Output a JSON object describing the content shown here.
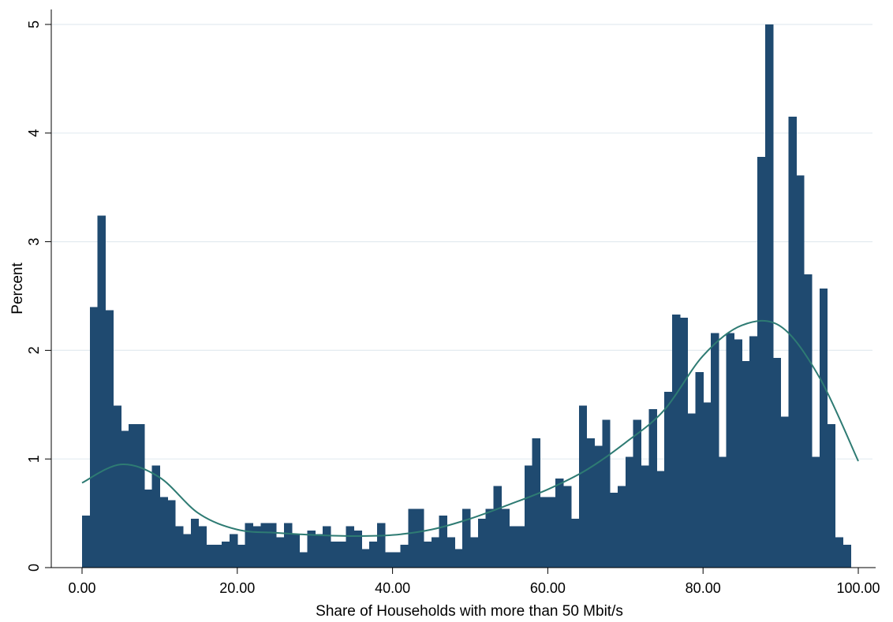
{
  "chart_data": {
    "type": "bar",
    "subtype": "histogram",
    "title": "",
    "xlabel": "Share of Households with more than 50 Mbit/s",
    "ylabel": "Percent",
    "xlim": [
      0,
      100
    ],
    "ylim": [
      0,
      5
    ],
    "bin_width": 1,
    "x_ticks": [
      0,
      20,
      40,
      60,
      80,
      100
    ],
    "x_tick_labels": [
      "0.00",
      "20.00",
      "40.00",
      "60.00",
      "80.00",
      "100.00"
    ],
    "y_ticks": [
      0,
      1,
      2,
      3,
      4,
      5
    ],
    "y_tick_labels": [
      "0",
      "1",
      "2",
      "3",
      "4",
      "5"
    ],
    "grid": "horizontal",
    "legend": "none",
    "bar_color": "#1f4a70",
    "line_color": "#2e7b73",
    "bins_start": [
      0,
      1,
      2,
      3,
      4,
      5,
      6,
      7,
      8,
      9,
      10,
      11,
      12,
      13,
      14,
      15,
      16,
      17,
      18,
      19,
      20,
      21,
      22,
      23,
      24,
      25,
      26,
      27,
      28,
      29,
      30,
      31,
      32,
      33,
      34,
      35,
      36,
      37,
      38,
      39,
      40,
      41,
      42,
      43,
      44,
      45,
      46,
      47,
      48,
      49,
      50,
      51,
      52,
      53,
      54,
      55,
      56,
      57,
      58,
      59,
      60,
      61,
      62,
      63,
      64,
      65,
      66,
      67,
      68,
      69,
      70,
      71,
      72,
      73,
      74,
      75,
      76,
      77,
      78,
      79,
      80,
      81,
      82,
      83,
      84,
      85,
      86,
      87,
      88,
      89,
      90,
      91,
      92,
      93,
      94,
      95,
      96,
      97,
      98,
      99
    ],
    "values": [
      0.48,
      2.4,
      3.24,
      2.37,
      1.49,
      1.26,
      1.32,
      1.32,
      0.72,
      0.94,
      0.65,
      0.62,
      0.38,
      0.31,
      0.45,
      0.38,
      0.21,
      0.21,
      0.24,
      0.31,
      0.21,
      0.41,
      0.38,
      0.41,
      0.41,
      0.28,
      0.41,
      0.31,
      0.14,
      0.34,
      0.31,
      0.38,
      0.24,
      0.24,
      0.38,
      0.34,
      0.17,
      0.24,
      0.41,
      0.14,
      0.14,
      0.21,
      0.54,
      0.54,
      0.24,
      0.28,
      0.48,
      0.28,
      0.17,
      0.54,
      0.28,
      0.45,
      0.54,
      0.75,
      0.54,
      0.38,
      0.38,
      0.94,
      1.19,
      0.65,
      0.65,
      0.82,
      0.75,
      0.45,
      1.49,
      1.19,
      1.12,
      1.36,
      0.69,
      0.75,
      1.02,
      1.36,
      0.94,
      1.46,
      0.89,
      1.62,
      2.33,
      2.3,
      1.42,
      1.8,
      1.52,
      2.16,
      1.02,
      2.16,
      2.1,
      1.9,
      2.13,
      3.78,
      5.0,
      1.93,
      1.39,
      4.15,
      3.61,
      2.7,
      1.02,
      2.57,
      1.32,
      0.28,
      0.21,
      0.0
    ],
    "series": [
      {
        "type": "line",
        "x": [
          0,
          5,
          10,
          15,
          20,
          25,
          30,
          35,
          40,
          45,
          50,
          55,
          60,
          65,
          70,
          75,
          80,
          85,
          90,
          95,
          100
        ],
        "values": [
          0.78,
          0.95,
          0.83,
          0.5,
          0.35,
          0.32,
          0.3,
          0.29,
          0.3,
          0.35,
          0.45,
          0.58,
          0.72,
          0.9,
          1.15,
          1.45,
          1.95,
          2.23,
          2.22,
          1.75,
          0.98
        ]
      }
    ]
  }
}
